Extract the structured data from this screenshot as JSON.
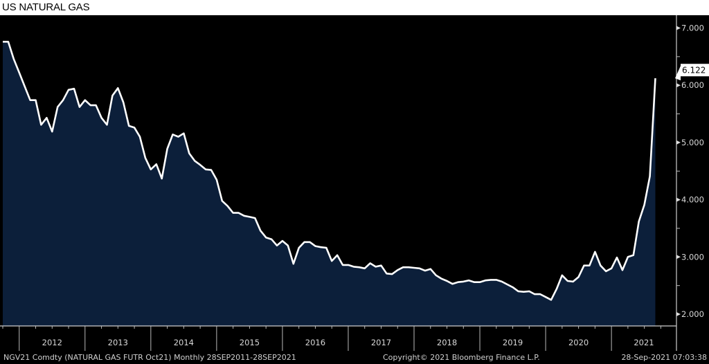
{
  "title": "US NATURAL GAS",
  "footer": {
    "security": "NGV21 Comdty (NATURAL GAS FUTR  Oct21)  Monthly 28SEP2011-28SEP2021",
    "copyright": "Copyright© 2021 Bloomberg Finance L.P.",
    "timestamp": "28-Sep-2021 07:03:38"
  },
  "colors": {
    "background": "#000000",
    "area_fill": "#0c1f3a",
    "line": "#ffffff",
    "axis": "#cfcfcf"
  },
  "chart_data": {
    "type": "area",
    "title": "US NATURAL GAS",
    "frequency": "monthly",
    "x_range": [
      "2011-10",
      "2021-09"
    ],
    "ylim": [
      1.8,
      7.2
    ],
    "y_ticks": [
      "2.000",
      "3.000",
      "4.000",
      "5.000",
      "6.000",
      "7.000"
    ],
    "y_tick_values": [
      2,
      3,
      4,
      5,
      6,
      7
    ],
    "x_tick_labels": [
      "2012",
      "2013",
      "2014",
      "2015",
      "2016",
      "2017",
      "2018",
      "2019",
      "2020",
      "2021"
    ],
    "grid": false,
    "last_value_label": "6.122",
    "last_value": 6.122,
    "x": [
      "2011-10",
      "2011-11",
      "2011-12",
      "2012-01",
      "2012-02",
      "2012-03",
      "2012-04",
      "2012-05",
      "2012-06",
      "2012-07",
      "2012-08",
      "2012-09",
      "2012-10",
      "2012-11",
      "2012-12",
      "2013-01",
      "2013-02",
      "2013-03",
      "2013-04",
      "2013-05",
      "2013-06",
      "2013-07",
      "2013-08",
      "2013-09",
      "2013-10",
      "2013-11",
      "2013-12",
      "2014-01",
      "2014-02",
      "2014-03",
      "2014-04",
      "2014-05",
      "2014-06",
      "2014-07",
      "2014-08",
      "2014-09",
      "2014-10",
      "2014-11",
      "2014-12",
      "2015-01",
      "2015-02",
      "2015-03",
      "2015-04",
      "2015-05",
      "2015-06",
      "2015-07",
      "2015-08",
      "2015-09",
      "2015-10",
      "2015-11",
      "2015-12",
      "2016-01",
      "2016-02",
      "2016-03",
      "2016-04",
      "2016-05",
      "2016-06",
      "2016-07",
      "2016-08",
      "2016-09",
      "2016-10",
      "2016-11",
      "2016-12",
      "2017-01",
      "2017-02",
      "2017-03",
      "2017-04",
      "2017-05",
      "2017-06",
      "2017-07",
      "2017-08",
      "2017-09",
      "2017-10",
      "2017-11",
      "2017-12",
      "2018-01",
      "2018-02",
      "2018-03",
      "2018-04",
      "2018-05",
      "2018-06",
      "2018-07",
      "2018-08",
      "2018-09",
      "2018-10",
      "2018-11",
      "2018-12",
      "2019-01",
      "2019-02",
      "2019-03",
      "2019-04",
      "2019-05",
      "2019-06",
      "2019-07",
      "2019-08",
      "2019-09",
      "2019-10",
      "2019-11",
      "2019-12",
      "2020-01",
      "2020-02",
      "2020-03",
      "2020-04",
      "2020-05",
      "2020-06",
      "2020-07",
      "2020-08",
      "2020-09",
      "2020-10",
      "2020-11",
      "2020-12",
      "2021-01",
      "2021-02",
      "2021-03",
      "2021-04",
      "2021-05",
      "2021-06",
      "2021-07",
      "2021-08",
      "2021-09"
    ],
    "values": [
      6.76,
      6.76,
      6.46,
      6.22,
      5.98,
      5.74,
      5.74,
      5.31,
      5.43,
      5.19,
      5.62,
      5.74,
      5.92,
      5.94,
      5.62,
      5.74,
      5.65,
      5.65,
      5.43,
      5.31,
      5.82,
      5.95,
      5.7,
      5.29,
      5.26,
      5.1,
      4.73,
      4.53,
      4.62,
      4.37,
      4.89,
      5.14,
      5.1,
      5.16,
      4.81,
      4.68,
      4.61,
      4.53,
      4.52,
      4.35,
      3.98,
      3.89,
      3.77,
      3.77,
      3.72,
      3.7,
      3.68,
      3.46,
      3.34,
      3.31,
      3.2,
      3.28,
      3.2,
      2.88,
      3.16,
      3.26,
      3.26,
      3.19,
      3.17,
      3.16,
      2.93,
      3.03,
      2.86,
      2.86,
      2.83,
      2.82,
      2.8,
      2.89,
      2.83,
      2.85,
      2.71,
      2.7,
      2.77,
      2.82,
      2.82,
      2.81,
      2.8,
      2.76,
      2.79,
      2.68,
      2.62,
      2.58,
      2.53,
      2.56,
      2.57,
      2.59,
      2.56,
      2.56,
      2.59,
      2.6,
      2.6,
      2.57,
      2.52,
      2.47,
      2.4,
      2.39,
      2.4,
      2.35,
      2.35,
      2.3,
      2.25,
      2.44,
      2.68,
      2.58,
      2.57,
      2.65,
      2.85,
      2.85,
      3.09,
      2.85,
      2.75,
      2.8,
      2.99,
      2.77,
      3.0,
      3.03,
      3.62,
      3.91,
      4.41,
      6.122
    ]
  }
}
